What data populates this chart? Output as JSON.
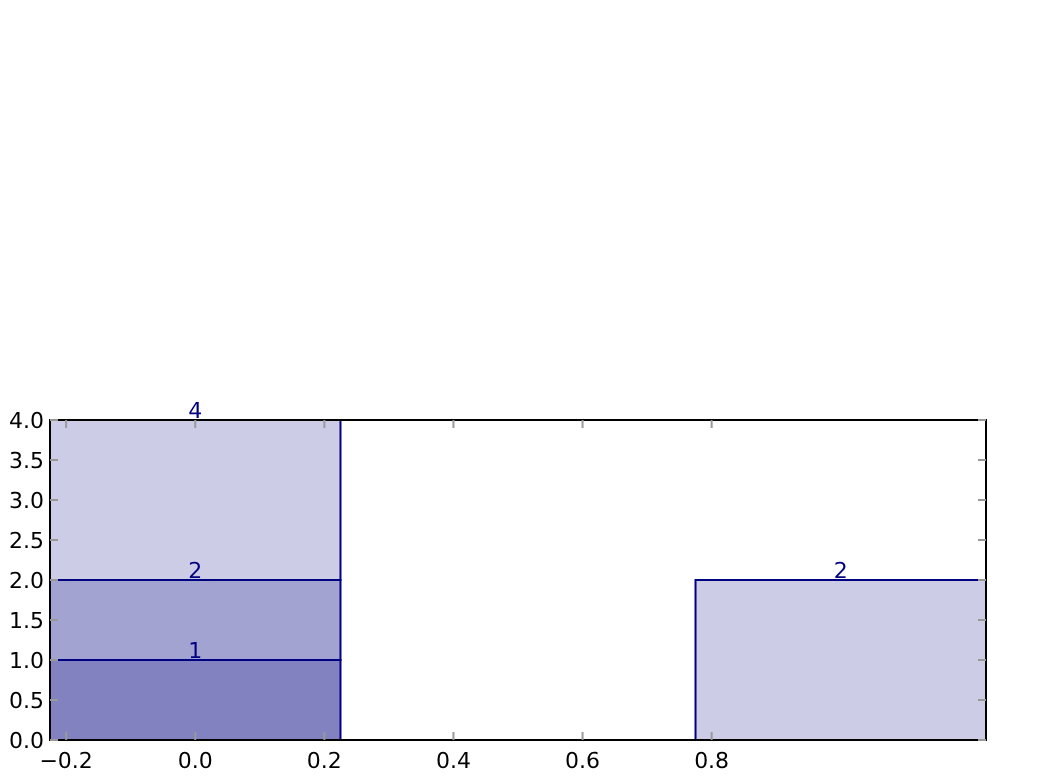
{
  "chart_data": {
    "type": "bar",
    "x": [
      0,
      1
    ],
    "stacked": true,
    "series": [
      {
        "color": "#8282c0",
        "values": [
          1,
          null
        ],
        "value_labels": [
          "1",
          null
        ]
      },
      {
        "color": "#a3a3d1",
        "values": [
          1,
          null
        ]
      },
      {
        "color": "#cccce6",
        "values": [
          2,
          2
        ],
        "value_labels": [
          null,
          "2"
        ]
      }
    ],
    "annotations": [
      {
        "text": "2",
        "x": 0,
        "y": 2
      },
      {
        "text": "4",
        "x": 0,
        "y": 4
      }
    ],
    "xlim": [
      -0.225,
      1.225
    ],
    "ylim": [
      0,
      4
    ],
    "xticks": [
      {
        "value": -0.2,
        "label": "−0.2"
      },
      {
        "value": 0,
        "label": "0.0"
      },
      {
        "value": 0.2,
        "label": "0.2"
      },
      {
        "value": 0.4,
        "label": "0.4"
      },
      {
        "value": 0.6,
        "label": "0.6"
      },
      {
        "value": 0.8,
        "label": "0.8"
      }
    ],
    "yticks": [
      {
        "value": 0,
        "label": "0.0"
      },
      {
        "value": 0.5,
        "label": "0.5"
      },
      {
        "value": 1,
        "label": "1.0"
      },
      {
        "value": 1.5,
        "label": "1.5"
      },
      {
        "value": 2,
        "label": "2.0"
      },
      {
        "value": 2.5,
        "label": "2.5"
      },
      {
        "value": 3,
        "label": "3.0"
      },
      {
        "value": 3.5,
        "label": "3.5"
      },
      {
        "value": 4,
        "label": "4.0"
      }
    ],
    "grid": false
  }
}
